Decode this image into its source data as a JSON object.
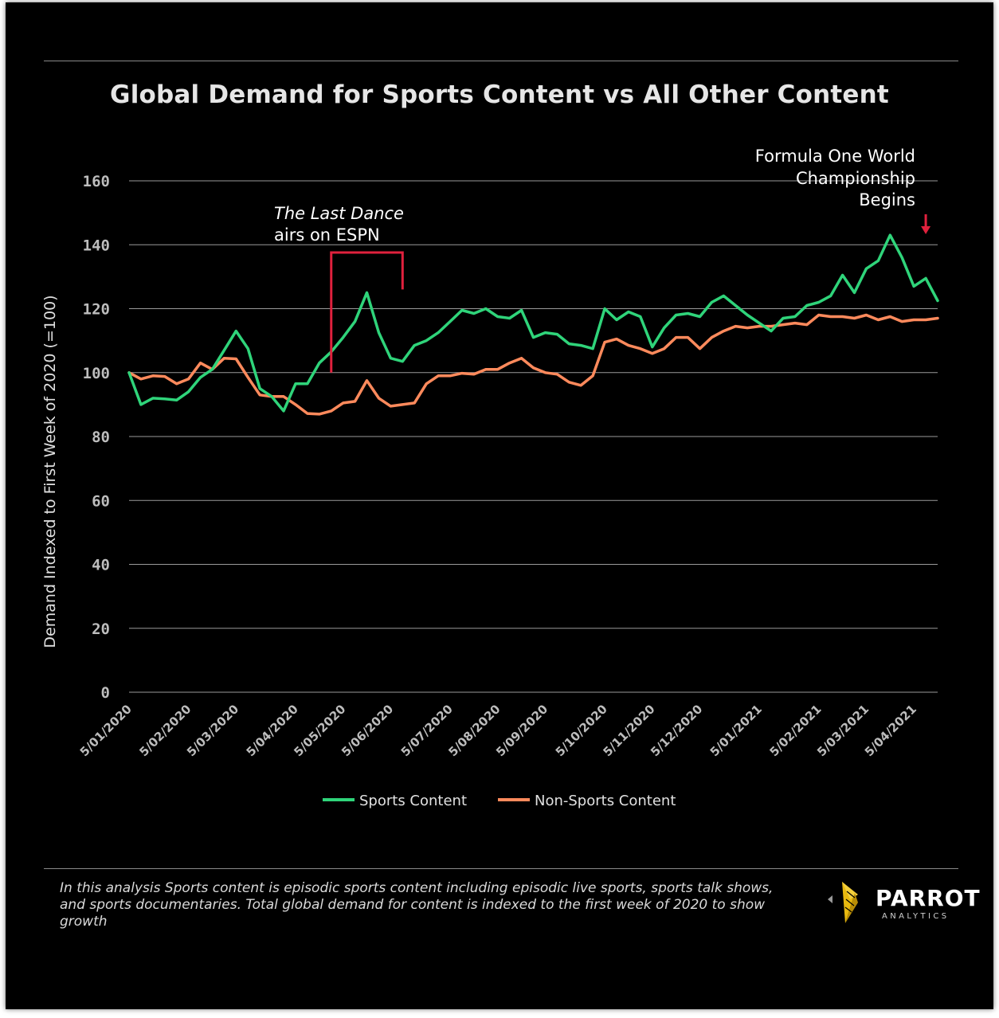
{
  "footnote": "In this analysis Sports content is episodic sports content including episodic live sports, sports talk shows, and sports documentaries.  Total global demand for content is indexed to the first week of 2020 to show growth",
  "logo": {
    "word": "PARROT",
    "sub": "ANALYTICS",
    "icon": "parrot-logo-icon",
    "accent": "#e8b90f"
  },
  "colors": {
    "sports": "#2fd47a",
    "non_sports": "#ff8a5c",
    "annotation": "#e0213d",
    "grid": "#9a9a9a"
  },
  "chart_data": {
    "type": "line",
    "title": "Global Demand for Sports Content vs All Other Content",
    "ylabel": "Demand Indexed to First Week of 2020 (=100)",
    "xlabel": "",
    "ylim": [
      0,
      160
    ],
    "yticks": [
      0,
      20,
      40,
      60,
      80,
      100,
      120,
      140,
      160
    ],
    "grid": true,
    "legend": "bottom",
    "x_start": "2020-01-05",
    "x_step_days": 7,
    "x_tick_labels": [
      "5/01/2020",
      "5/02/2020",
      "5/03/2020",
      "5/04/2020",
      "5/05/2020",
      "5/06/2020",
      "5/07/2020",
      "5/08/2020",
      "5/09/2020",
      "5/10/2020",
      "5/11/2020",
      "5/12/2020",
      "5/01/2021",
      "5/02/2021",
      "5/03/2021",
      "5/04/2021"
    ],
    "x_tick_index": [
      0,
      5,
      9,
      14,
      18,
      22,
      27,
      31,
      35,
      40,
      44,
      48,
      53,
      58,
      62,
      66
    ],
    "series": [
      {
        "name": "Sports Content",
        "color": "#2fd47a",
        "values": [
          100,
          90,
          92,
          91.8,
          91.4,
          94,
          98.5,
          101,
          107,
          113,
          107.5,
          95,
          92.5,
          88,
          96.5,
          96.5,
          103,
          106.5,
          111,
          116,
          125,
          112.5,
          104.5,
          103.5,
          108.5,
          110,
          112.5,
          116,
          119.5,
          118.5,
          120,
          117.5,
          117,
          119.5,
          111,
          112.5,
          112,
          109,
          108.5,
          107.5,
          120,
          116.5,
          119,
          117.5,
          108,
          114,
          118,
          118.5,
          117.5,
          122,
          124,
          121,
          118,
          115.5,
          113,
          117,
          117.5,
          121,
          122,
          124,
          130.5,
          125,
          132.5,
          135,
          143,
          136,
          127,
          129.5,
          122.5
        ]
      },
      {
        "name": "Non-Sports Content",
        "color": "#ff8a5c",
        "values": [
          100,
          98,
          99,
          98.8,
          96.5,
          98,
          103,
          101,
          104.5,
          104.3,
          98.5,
          93,
          92.5,
          92.5,
          90,
          87.2,
          87,
          88,
          90.5,
          91,
          97.5,
          92,
          89.5,
          90,
          90.5,
          96.5,
          99,
          99,
          99.8,
          99.5,
          101,
          101,
          103,
          104.5,
          101.5,
          100,
          99.5,
          97,
          96,
          99,
          109.5,
          110.5,
          108.5,
          107.5,
          106,
          107.5,
          111,
          111,
          107.5,
          111,
          113,
          114.5,
          114,
          114.5,
          114.5,
          115,
          115.5,
          115,
          118,
          117.5,
          117.5,
          117,
          118,
          116.5,
          117.5,
          116,
          116.5,
          116.5,
          117
        ]
      }
    ],
    "annotations": [
      {
        "title": "The Last Dance",
        "text": "airs on ESPN",
        "range_index": [
          17,
          23
        ],
        "range_values": [
          100,
          126
        ]
      },
      {
        "lines": [
          "Formula One World",
          "Championship",
          "Begins"
        ],
        "index": 67
      }
    ]
  }
}
